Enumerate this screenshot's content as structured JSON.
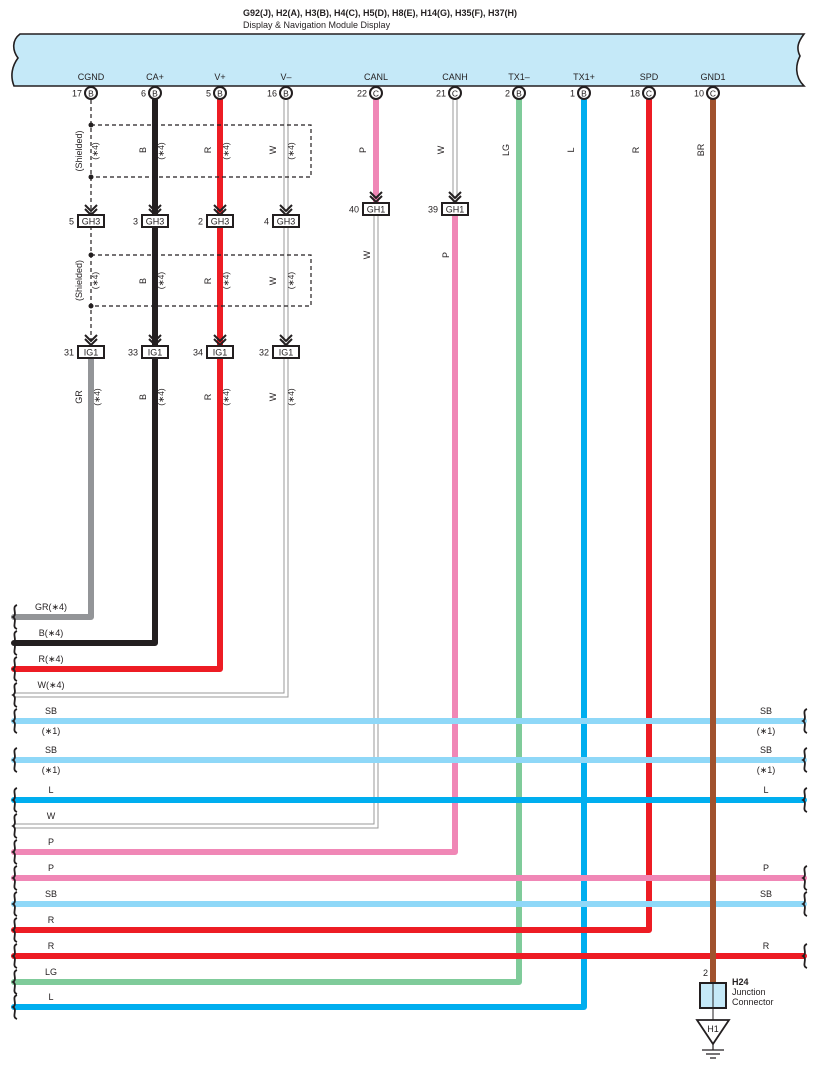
{
  "module": {
    "title": "G92(J), H2(A), H3(B), H4(C), H5(D), H8(E), H14(G), H35(F), H37(H)",
    "subtitle": "Display & Navigation Module Display",
    "fill_color": "#c5e9f8"
  },
  "colors": {
    "B": "#231f20",
    "R": "#ed1c24",
    "W": "#ffffff",
    "GR": "#939598",
    "P": "#f087b6",
    "LG": "#7fcb9a",
    "L": "#00aeef",
    "SB": "#8fd8f8",
    "BR": "#a0522d"
  },
  "terminals": [
    {
      "name": "CGND",
      "pin": "17",
      "conn": "B"
    },
    {
      "name": "CA+",
      "pin": "6",
      "conn": "B"
    },
    {
      "name": "V+",
      "pin": "5",
      "conn": "B"
    },
    {
      "name": "V–",
      "pin": "16",
      "conn": "B"
    },
    {
      "name": "CANL",
      "pin": "22",
      "conn": "C"
    },
    {
      "name": "CANH",
      "pin": "21",
      "conn": "C"
    },
    {
      "name": "TX1–",
      "pin": "2",
      "conn": "B"
    },
    {
      "name": "TX1+",
      "pin": "1",
      "conn": "B"
    },
    {
      "name": "SPD",
      "pin": "18",
      "conn": "C"
    },
    {
      "name": "GND1",
      "pin": "10",
      "conn": "C"
    }
  ],
  "shield_label": "(Shielded)",
  "note4": "(∗4)",
  "upper_wire_labels": [
    "B",
    "R",
    "W",
    "P",
    "W",
    "LG",
    "L",
    "R",
    "BR"
  ],
  "gh3": {
    "name": "GH3",
    "pins": [
      "5",
      "3",
      "2",
      "4"
    ]
  },
  "gh1": {
    "name": "GH1",
    "pins": [
      "40",
      "39"
    ]
  },
  "middle_wire_labels": [
    "B",
    "R",
    "W",
    "W",
    "P"
  ],
  "ig1": {
    "name": "IG1",
    "pins": [
      "31",
      "33",
      "34",
      "32"
    ]
  },
  "lower_wire_labels": [
    "GR",
    "B",
    "R",
    "W"
  ],
  "harness_wires": [
    {
      "left": "GR(∗4)",
      "color": "GR"
    },
    {
      "left": "B(∗4)",
      "color": "B"
    },
    {
      "left": "R(∗4)",
      "color": "R"
    },
    {
      "left": "W(∗4)",
      "color": "W"
    },
    {
      "left": "SB",
      "note": "(∗1)",
      "right": "SB",
      "right_note": "(∗1)",
      "color": "SB"
    },
    {
      "left": "SB",
      "note": "(∗1)",
      "right": "SB",
      "right_note": "(∗1)",
      "color": "SB"
    },
    {
      "left": "L",
      "right": "L",
      "color": "L"
    },
    {
      "left": "W",
      "color": "W"
    },
    {
      "left": "P",
      "color": "P"
    },
    {
      "left": "P",
      "right": "P",
      "color": "P"
    },
    {
      "left": "SB",
      "right": "SB",
      "color": "SB"
    },
    {
      "left": "R",
      "color": "R"
    },
    {
      "left": "R",
      "right": "R",
      "color": "R"
    },
    {
      "left": "LG",
      "color": "LG"
    },
    {
      "left": "L",
      "color": "L"
    }
  ],
  "junction": {
    "pin": "2",
    "name": "H24",
    "line1": "Junction",
    "line2": "Connector",
    "ground": "H1"
  }
}
